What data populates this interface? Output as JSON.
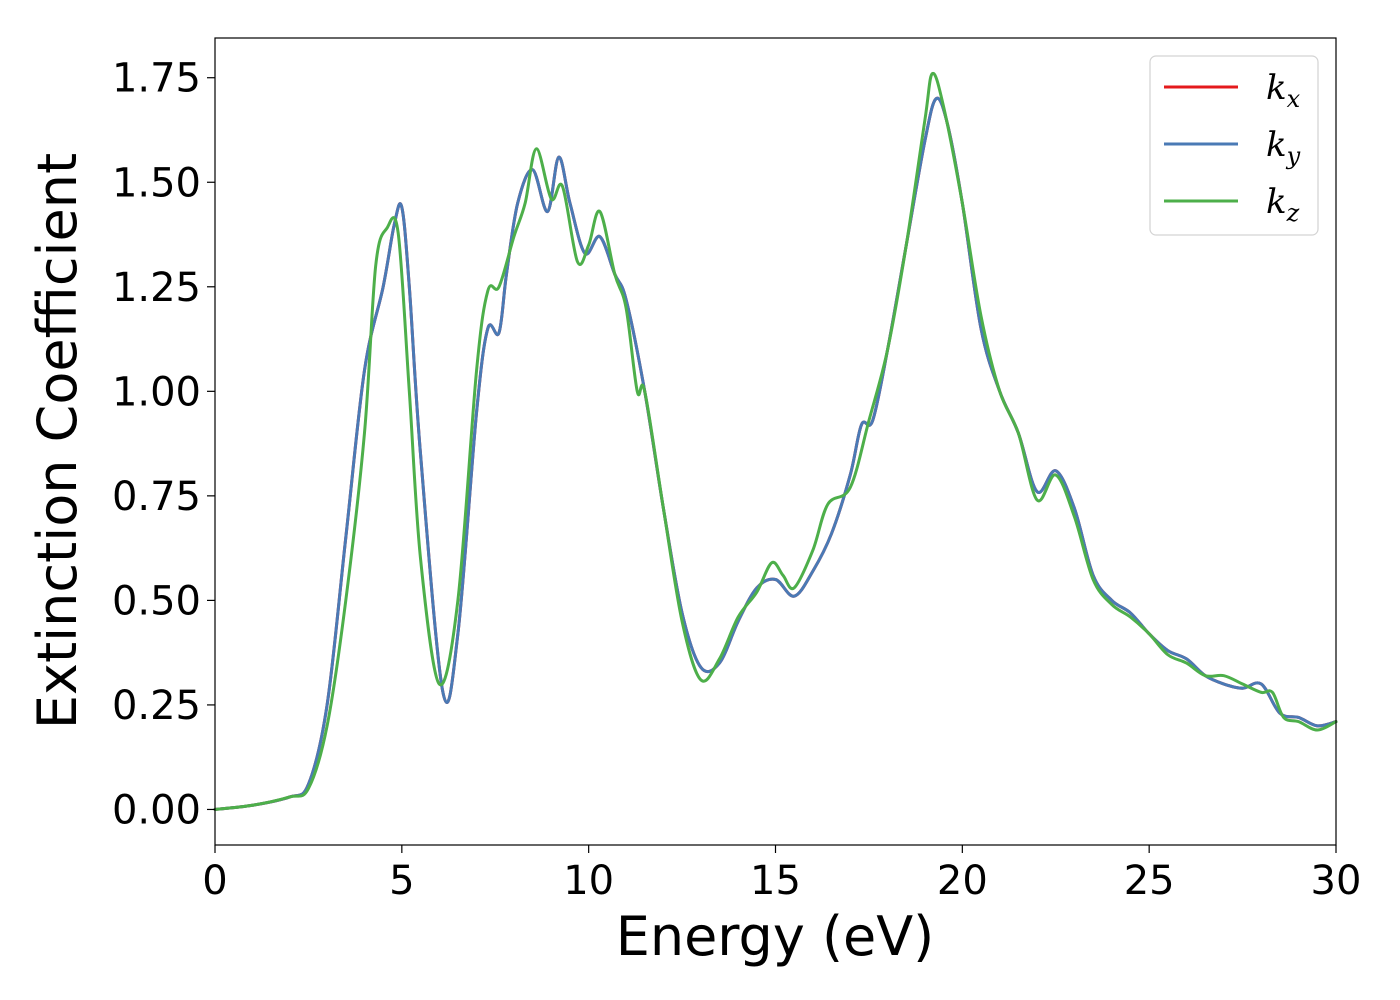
{
  "chart_data": {
    "type": "line",
    "title": "",
    "xlabel": "Energy (eV)",
    "ylabel": "Extinction Coefficient",
    "xlim": [
      0,
      30
    ],
    "ylim": [
      -0.085,
      1.845
    ],
    "xticks": [
      0,
      5,
      10,
      15,
      20,
      25,
      30
    ],
    "xtick_labels": [
      "0",
      "5",
      "10",
      "15",
      "20",
      "25",
      "30"
    ],
    "yticks": [
      0.0,
      0.25,
      0.5,
      0.75,
      1.0,
      1.25,
      1.5,
      1.75
    ],
    "ytick_labels": [
      "0.00",
      "0.25",
      "0.50",
      "0.75",
      "1.00",
      "1.25",
      "1.50",
      "1.75"
    ],
    "grid": false,
    "legend_position": "top-right",
    "series": [
      {
        "name": "k_x",
        "legend_base": "k",
        "legend_sub": "x",
        "color": "#e41a1c",
        "x": [
          0,
          1,
          2,
          2.5,
          3,
          3.5,
          4,
          4.5,
          4.8,
          5.0,
          5.2,
          5.5,
          6.1,
          6.5,
          7.0,
          7.3,
          7.6,
          7.8,
          8.1,
          8.5,
          8.9,
          9.2,
          9.5,
          9.9,
          10.3,
          10.7,
          11.0,
          11.5,
          12.0,
          12.5,
          13.0,
          13.5,
          14.0,
          14.5,
          15.0,
          15.5,
          16.0,
          16.5,
          17.0,
          17.3,
          17.6,
          18.0,
          18.5,
          19.0,
          19.3,
          19.6,
          20.0,
          20.5,
          21.0,
          21.5,
          22.0,
          22.5,
          23.0,
          23.5,
          24.0,
          24.5,
          25.0,
          25.5,
          26.0,
          26.5,
          27.0,
          27.5,
          28.0,
          28.5,
          29.0,
          29.5,
          30.0
        ],
        "y": [
          0.0,
          0.01,
          0.03,
          0.06,
          0.25,
          0.65,
          1.05,
          1.25,
          1.4,
          1.44,
          1.25,
          0.85,
          0.28,
          0.42,
          0.95,
          1.15,
          1.14,
          1.28,
          1.45,
          1.53,
          1.43,
          1.56,
          1.45,
          1.33,
          1.37,
          1.28,
          1.22,
          1.0,
          0.72,
          0.47,
          0.34,
          0.35,
          0.45,
          0.53,
          0.55,
          0.51,
          0.57,
          0.66,
          0.8,
          0.92,
          0.93,
          1.1,
          1.35,
          1.6,
          1.7,
          1.64,
          1.45,
          1.15,
          1.0,
          0.9,
          0.76,
          0.81,
          0.72,
          0.56,
          0.5,
          0.47,
          0.42,
          0.38,
          0.36,
          0.32,
          0.3,
          0.29,
          0.3,
          0.23,
          0.22,
          0.2,
          0.21
        ]
      },
      {
        "name": "k_y",
        "legend_base": "k",
        "legend_sub": "y",
        "color": "#4a7ab5",
        "x": [
          0,
          1,
          2,
          2.5,
          3,
          3.5,
          4,
          4.5,
          4.8,
          5.0,
          5.2,
          5.5,
          6.1,
          6.5,
          7.0,
          7.3,
          7.6,
          7.8,
          8.1,
          8.5,
          8.9,
          9.2,
          9.5,
          9.9,
          10.3,
          10.7,
          11.0,
          11.5,
          12.0,
          12.5,
          13.0,
          13.5,
          14.0,
          14.5,
          15.0,
          15.5,
          16.0,
          16.5,
          17.0,
          17.3,
          17.6,
          18.0,
          18.5,
          19.0,
          19.3,
          19.6,
          20.0,
          20.5,
          21.0,
          21.5,
          22.0,
          22.5,
          23.0,
          23.5,
          24.0,
          24.5,
          25.0,
          25.5,
          26.0,
          26.5,
          27.0,
          27.5,
          28.0,
          28.5,
          29.0,
          29.5,
          30.0
        ],
        "y": [
          0.0,
          0.01,
          0.03,
          0.06,
          0.25,
          0.65,
          1.05,
          1.25,
          1.4,
          1.44,
          1.25,
          0.85,
          0.28,
          0.42,
          0.95,
          1.15,
          1.14,
          1.28,
          1.45,
          1.53,
          1.43,
          1.56,
          1.45,
          1.33,
          1.37,
          1.28,
          1.22,
          1.0,
          0.72,
          0.47,
          0.34,
          0.35,
          0.45,
          0.53,
          0.55,
          0.51,
          0.57,
          0.66,
          0.8,
          0.92,
          0.93,
          1.1,
          1.35,
          1.6,
          1.7,
          1.64,
          1.45,
          1.15,
          1.0,
          0.9,
          0.76,
          0.81,
          0.72,
          0.56,
          0.5,
          0.47,
          0.42,
          0.38,
          0.36,
          0.32,
          0.3,
          0.29,
          0.3,
          0.23,
          0.22,
          0.2,
          0.21
        ]
      },
      {
        "name": "k_z",
        "legend_base": "k",
        "legend_sub": "z",
        "color": "#4daf4a",
        "x": [
          0,
          1,
          2,
          2.5,
          3,
          3.5,
          4,
          4.3,
          4.6,
          4.9,
          5.2,
          5.5,
          6.0,
          6.5,
          7.0,
          7.3,
          7.6,
          8.0,
          8.3,
          8.6,
          9.0,
          9.3,
          9.7,
          10.0,
          10.3,
          10.7,
          11.0,
          11.3,
          11.5,
          12.0,
          12.5,
          13.0,
          13.5,
          14.0,
          14.5,
          14.9,
          15.2,
          15.5,
          16.0,
          16.4,
          17.0,
          17.5,
          18.0,
          18.5,
          19.0,
          19.2,
          19.5,
          20.0,
          20.5,
          21.0,
          21.5,
          22.0,
          22.5,
          23.0,
          23.5,
          24.0,
          24.5,
          25.0,
          25.5,
          26.0,
          26.5,
          27.0,
          27.5,
          28.0,
          28.3,
          28.6,
          29.0,
          29.5,
          30.0
        ],
        "y": [
          0.0,
          0.01,
          0.03,
          0.05,
          0.2,
          0.5,
          0.9,
          1.3,
          1.39,
          1.38,
          1.0,
          0.6,
          0.3,
          0.5,
          1.05,
          1.24,
          1.25,
          1.37,
          1.45,
          1.58,
          1.46,
          1.49,
          1.31,
          1.35,
          1.43,
          1.28,
          1.2,
          1.0,
          1.0,
          0.72,
          0.45,
          0.31,
          0.36,
          0.46,
          0.52,
          0.59,
          0.56,
          0.53,
          0.62,
          0.73,
          0.77,
          0.93,
          1.1,
          1.35,
          1.65,
          1.76,
          1.68,
          1.45,
          1.18,
          1.0,
          0.9,
          0.74,
          0.8,
          0.7,
          0.55,
          0.49,
          0.46,
          0.42,
          0.37,
          0.35,
          0.32,
          0.32,
          0.3,
          0.28,
          0.28,
          0.22,
          0.21,
          0.19,
          0.21
        ]
      }
    ]
  }
}
